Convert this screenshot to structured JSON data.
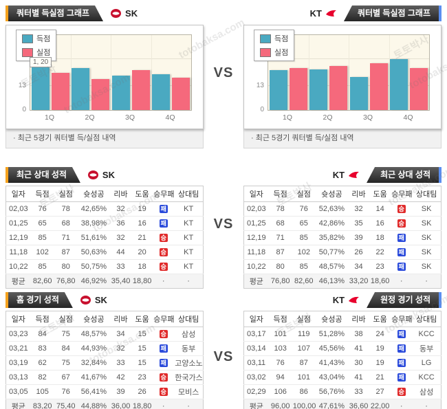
{
  "vs_label": "VS",
  "watermark": {
    "name": "토토박사",
    "domain": "totobaksa.com"
  },
  "colors": {
    "score_bar": "#4aa9c1",
    "concede_bar": "#f5697c",
    "win_badge": "#e02a2a",
    "loss_badge": "#2b4bdb",
    "accent_left": "#f5a21d",
    "accent_right": "#5b8ff0"
  },
  "chart_note": "· 최근 5경기 쿼터별 득/실점 내역",
  "chart_data": [
    {
      "type": "bar",
      "title": "쿼터별 득실점 그래프",
      "team": "SK",
      "tooltip": "1, 20",
      "categories": [
        "1Q",
        "2Q",
        "3Q",
        "4Q"
      ],
      "series": [
        {
          "name": "득점",
          "color": "#4aa9c1",
          "values": [
            22.6,
            22.4,
            18.4,
            19.2
          ]
        },
        {
          "name": "실점",
          "color": "#f5697c",
          "values": [
            20.0,
            16.4,
            21.2,
            17.2
          ]
        }
      ],
      "ylim": [
        0,
        40
      ],
      "yticks": [
        0,
        13,
        27,
        40
      ],
      "legend_position": "top-left",
      "grid": true
    },
    {
      "type": "bar",
      "title": "쿼터별 득실점 그래프",
      "team": "KT",
      "tooltip": "",
      "categories": [
        "1Q",
        "2Q",
        "3Q",
        "4Q"
      ],
      "series": [
        {
          "name": "득점",
          "color": "#4aa9c1",
          "values": [
            21.2,
            21.8,
            17.8,
            27.2
          ]
        },
        {
          "name": "실점",
          "color": "#f5697c",
          "values": [
            22.4,
            23.4,
            25.0,
            22.4
          ]
        }
      ],
      "ylim": [
        0,
        40
      ],
      "yticks": [
        0,
        13,
        27,
        40
      ],
      "legend_position": "top-left",
      "grid": true
    }
  ],
  "table_headers": [
    "일자",
    "득점",
    "실점",
    "슛성공",
    "리바",
    "도움",
    "승무패",
    "상대팀"
  ],
  "tables": [
    {
      "title": "최근 상대 성적",
      "team": "SK",
      "rows": [
        [
          "02,03",
          "76",
          "78",
          "42,65%",
          "32",
          "19",
          "패",
          "KT"
        ],
        [
          "01,25",
          "65",
          "68",
          "38,98%",
          "36",
          "16",
          "패",
          "KT"
        ],
        [
          "12,19",
          "85",
          "71",
          "51,61%",
          "32",
          "21",
          "승",
          "KT"
        ],
        [
          "11,18",
          "102",
          "87",
          "50,63%",
          "44",
          "20",
          "승",
          "KT"
        ],
        [
          "10,22",
          "85",
          "80",
          "50,75%",
          "33",
          "18",
          "승",
          "KT"
        ]
      ],
      "avg": [
        "평균",
        "82,60",
        "76,80",
        "46,92%",
        "35,40",
        "18,80",
        "·",
        "·"
      ]
    },
    {
      "title": "최근 상대 성적",
      "team": "KT",
      "rows": [
        [
          "02,03",
          "78",
          "76",
          "52,63%",
          "32",
          "14",
          "승",
          "SK"
        ],
        [
          "01,25",
          "68",
          "65",
          "42,86%",
          "35",
          "16",
          "승",
          "SK"
        ],
        [
          "12,19",
          "71",
          "85",
          "35,82%",
          "39",
          "18",
          "패",
          "SK"
        ],
        [
          "11,18",
          "87",
          "102",
          "50,77%",
          "26",
          "22",
          "패",
          "SK"
        ],
        [
          "10,22",
          "80",
          "85",
          "48,57%",
          "34",
          "23",
          "패",
          "SK"
        ]
      ],
      "avg": [
        "평균",
        "76,80",
        "82,60",
        "46,13%",
        "33,20",
        "18,60",
        "·",
        "·"
      ]
    },
    {
      "title": "홈 경기 성적",
      "team": "SK",
      "rows": [
        [
          "03,23",
          "84",
          "75",
          "48,57%",
          "34",
          "15",
          "승",
          "삼성"
        ],
        [
          "03,21",
          "83",
          "84",
          "44,93%",
          "32",
          "15",
          "패",
          "동부"
        ],
        [
          "03,19",
          "62",
          "75",
          "32,84%",
          "33",
          "15",
          "패",
          "고양소노"
        ],
        [
          "03,13",
          "82",
          "67",
          "41,67%",
          "42",
          "23",
          "승",
          "한국가스"
        ],
        [
          "03,05",
          "105",
          "76",
          "56,41%",
          "39",
          "26",
          "승",
          "모비스"
        ]
      ],
      "avg": [
        "평균",
        "83,20",
        "75,40",
        "44,88%",
        "36,00",
        "18,80",
        "·",
        "·"
      ]
    },
    {
      "title": "원정 경기 성적",
      "team": "KT",
      "rows": [
        [
          "03,17",
          "101",
          "119",
          "51,28%",
          "38",
          "24",
          "패",
          "KCC"
        ],
        [
          "03,14",
          "103",
          "107",
          "45,56%",
          "41",
          "19",
          "패",
          "동부"
        ],
        [
          "03,11",
          "76",
          "87",
          "41,43%",
          "30",
          "19",
          "패",
          "LG"
        ],
        [
          "03,02",
          "94",
          "101",
          "43,04%",
          "41",
          "21",
          "패",
          "KCC"
        ],
        [
          "02,29",
          "106",
          "86",
          "56,76%",
          "33",
          "27",
          "승",
          "삼성"
        ]
      ],
      "avg": [
        "평균",
        "96,00",
        "100,00",
        "47,61%",
        "36,60",
        "22,00",
        "·",
        "·"
      ]
    }
  ]
}
